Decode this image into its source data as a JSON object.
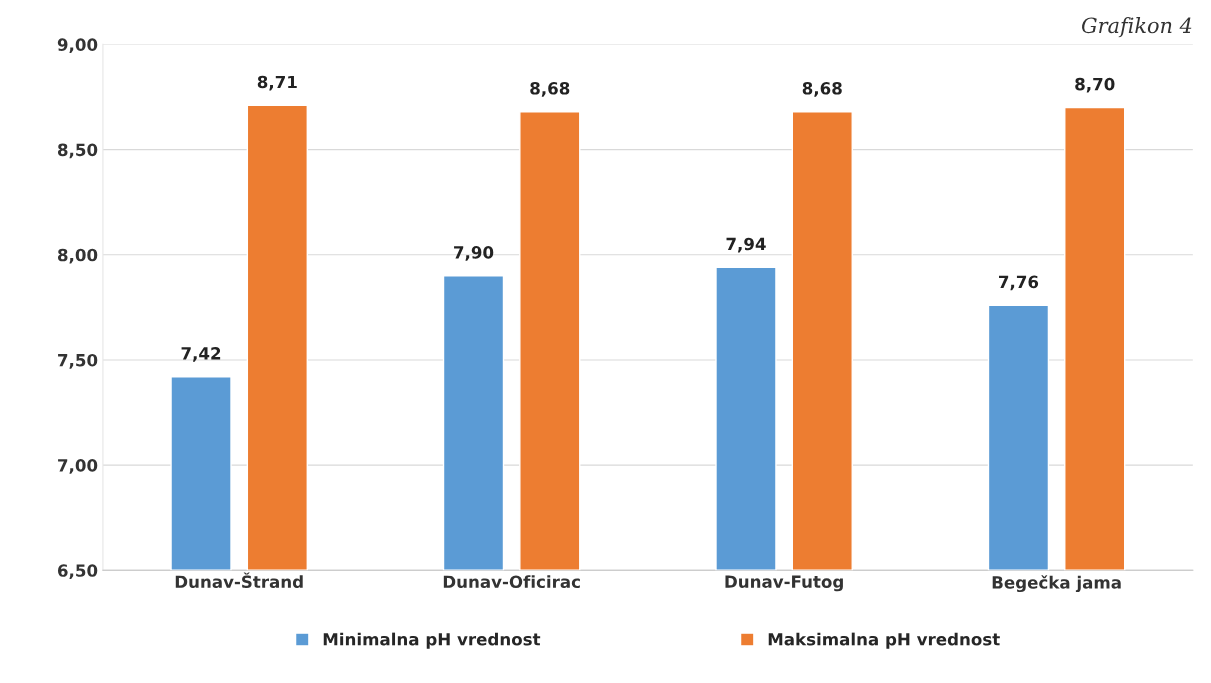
{
  "chart_data": {
    "type": "bar",
    "categories": [
      "Dunav-Štrand",
      "Dunav-Oficirac",
      "Dunav-Futog",
      "Begečka jama"
    ],
    "series": [
      {
        "name": "Minimalna pH vrednost",
        "color": "#5b9bd5",
        "values": [
          7.42,
          7.9,
          7.94,
          7.76
        ],
        "value_labels": [
          "7,42",
          "7,90",
          "7,94",
          "7,76"
        ]
      },
      {
        "name": "Maksimalna pH vrednost",
        "color": "#ed7d31",
        "values": [
          8.71,
          8.68,
          8.68,
          8.7
        ],
        "value_labels": [
          "8,71",
          "8,68",
          "8,68",
          "8,70"
        ]
      }
    ],
    "ylim": [
      6.5,
      9.0
    ],
    "yticks": [
      {
        "value": 6.5,
        "label": "6,50"
      },
      {
        "value": 7.0,
        "label": "7,00"
      },
      {
        "value": 7.5,
        "label": "7,50"
      },
      {
        "value": 8.0,
        "label": "8,00"
      },
      {
        "value": 8.5,
        "label": "8,50"
      },
      {
        "value": 9.0,
        "label": "9,00"
      }
    ],
    "grid": "y",
    "legend": "bottom",
    "annotations": [
      "Grafikon 4"
    ]
  }
}
